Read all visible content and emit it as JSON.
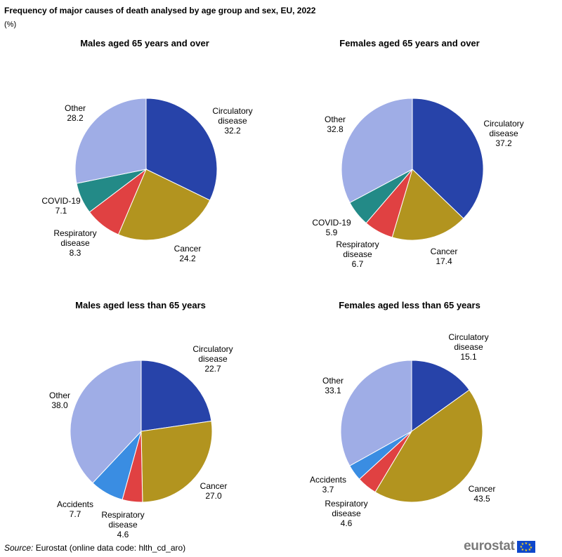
{
  "header": {
    "title": "Frequency of major causes of death analysed by age group and sex, EU, 2022",
    "unit": "(%)"
  },
  "colors": {
    "Circulatory disease": "#2743a9",
    "Cancer": "#b2941f",
    "Respiratory disease": "#e04142",
    "COVID-19": "#238a87",
    "Accidents": "#3a8de2",
    "Other": "#9fade6"
  },
  "chart_data": [
    {
      "type": "pie",
      "title": "Males aged 65 years and over",
      "slices": [
        {
          "label": "Circulatory disease",
          "value": 32.2,
          "display": "32.2"
        },
        {
          "label": "Cancer",
          "value": 24.2,
          "display": "24.2"
        },
        {
          "label": "Respiratory disease",
          "value": 8.3,
          "display": "8.3"
        },
        {
          "label": "COVID-19",
          "value": 7.1,
          "display": "7.1"
        },
        {
          "label": "Other",
          "value": 28.2,
          "display": "28.2"
        }
      ]
    },
    {
      "type": "pie",
      "title": "Females aged 65 years and over",
      "slices": [
        {
          "label": "Circulatory disease",
          "value": 37.2,
          "display": "37.2"
        },
        {
          "label": "Cancer",
          "value": 17.4,
          "display": "17.4"
        },
        {
          "label": "Respiratory disease",
          "value": 6.7,
          "display": "6.7"
        },
        {
          "label": "COVID-19",
          "value": 5.9,
          "display": "5.9"
        },
        {
          "label": "Other",
          "value": 32.8,
          "display": "32.8"
        }
      ]
    },
    {
      "type": "pie",
      "title": "Males aged less than 65 years",
      "slices": [
        {
          "label": "Circulatory disease",
          "value": 22.7,
          "display": "22.7"
        },
        {
          "label": "Cancer",
          "value": 27.0,
          "display": "27.0"
        },
        {
          "label": "Respiratory disease",
          "value": 4.6,
          "display": "4.6"
        },
        {
          "label": "Accidents",
          "value": 7.7,
          "display": "7.7"
        },
        {
          "label": "Other",
          "value": 38.0,
          "display": "38.0"
        }
      ]
    },
    {
      "type": "pie",
      "title": "Females aged less than 65 years",
      "slices": [
        {
          "label": "Circulatory disease",
          "value": 15.1,
          "display": "15.1"
        },
        {
          "label": "Cancer",
          "value": 43.5,
          "display": "43.5"
        },
        {
          "label": "Respiratory disease",
          "value": 4.6,
          "display": "4.6"
        },
        {
          "label": "Accidents",
          "value": 3.7,
          "display": "3.7"
        },
        {
          "label": "Other",
          "value": 33.1,
          "display": "33.1"
        }
      ]
    }
  ],
  "footer": {
    "source_label": "Source:",
    "source_text": " Eurostat (online data code: hlth_cd_aro)",
    "logo_text": "eurostat"
  }
}
